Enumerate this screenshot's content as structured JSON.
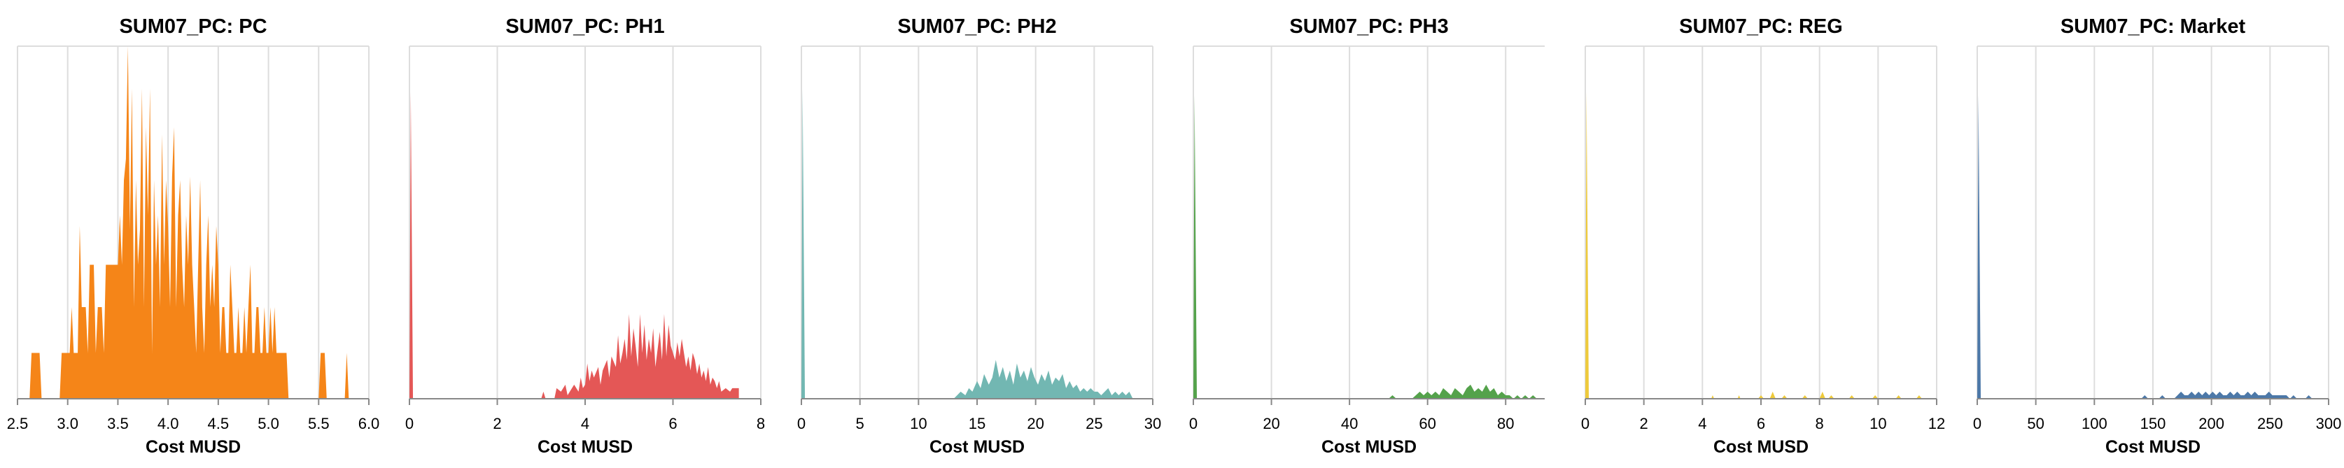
{
  "chart_data": [
    {
      "type": "area",
      "title": "SUM07_PC: PC",
      "xlabel": "Cost MUSD",
      "ylabel": "",
      "color": "#f58518",
      "xlim": [
        2.5,
        6.0
      ],
      "ylim": [
        0,
        1
      ],
      "xticks": [
        "2.5",
        "3.0",
        "3.5",
        "4.0",
        "4.5",
        "5.0",
        "5.5",
        "6.0"
      ],
      "grid": true,
      "x": [
        2.62,
        2.64,
        2.72,
        2.74,
        2.92,
        2.94,
        2.96,
        3.02,
        3.04,
        3.06,
        3.1,
        3.12,
        3.14,
        3.18,
        3.2,
        3.22,
        3.24,
        3.26,
        3.28,
        3.3,
        3.32,
        3.34,
        3.36,
        3.38,
        3.4,
        3.42,
        3.44,
        3.46,
        3.48,
        3.5,
        3.52,
        3.54,
        3.56,
        3.58,
        3.6,
        3.62,
        3.64,
        3.66,
        3.68,
        3.7,
        3.72,
        3.74,
        3.76,
        3.78,
        3.8,
        3.82,
        3.84,
        3.86,
        3.88,
        3.9,
        3.92,
        3.94,
        3.96,
        3.98,
        4.0,
        4.02,
        4.04,
        4.06,
        4.08,
        4.1,
        4.12,
        4.14,
        4.16,
        4.18,
        4.2,
        4.22,
        4.24,
        4.26,
        4.28,
        4.3,
        4.32,
        4.34,
        4.36,
        4.38,
        4.4,
        4.42,
        4.44,
        4.46,
        4.48,
        4.5,
        4.52,
        4.54,
        4.56,
        4.58,
        4.6,
        4.62,
        4.64,
        4.66,
        4.68,
        4.7,
        4.72,
        4.74,
        4.76,
        4.78,
        4.8,
        4.82,
        4.84,
        4.86,
        4.88,
        4.9,
        4.92,
        4.94,
        4.96,
        4.98,
        5.0,
        5.02,
        5.04,
        5.06,
        5.08,
        5.1,
        5.12,
        5.14,
        5.16,
        5.18,
        5.2,
        5.5,
        5.52,
        5.54,
        5.56,
        5.58,
        5.76,
        5.78,
        5.8
      ],
      "values": [
        0,
        0.13,
        0.13,
        0,
        0,
        0.13,
        0.13,
        0.13,
        0.26,
        0.13,
        0.13,
        0.49,
        0.26,
        0.26,
        0.13,
        0.38,
        0.38,
        0.38,
        0.13,
        0.26,
        0.26,
        0.26,
        0.13,
        0.38,
        0.38,
        0.38,
        0.38,
        0.38,
        0.38,
        0.38,
        0.52,
        0.38,
        0.62,
        0.68,
        1.0,
        0.48,
        0.88,
        0.26,
        0.62,
        0.38,
        0.48,
        0.88,
        0.26,
        0.77,
        0.52,
        0.88,
        0.13,
        0.62,
        0.38,
        0.52,
        0.26,
        0.75,
        0.38,
        0.62,
        0.49,
        0.26,
        0.63,
        0.77,
        0.26,
        0.52,
        0.62,
        0.38,
        0.26,
        0.52,
        0.38,
        0.63,
        0.38,
        0.26,
        0.13,
        0.38,
        0.62,
        0.26,
        0.13,
        0.38,
        0.52,
        0.26,
        0.38,
        0.26,
        0.49,
        0.38,
        0.13,
        0.26,
        0.26,
        0.13,
        0.13,
        0.38,
        0.26,
        0.13,
        0.13,
        0.26,
        0.13,
        0.13,
        0.26,
        0.13,
        0.26,
        0.38,
        0.13,
        0.13,
        0.26,
        0.26,
        0.13,
        0.13,
        0.26,
        0.13,
        0.13,
        0.26,
        0.13,
        0.26,
        0.13,
        0.13,
        0.13,
        0.13,
        0.13,
        0.13,
        0,
        0,
        0.13,
        0.13,
        0.13,
        0,
        0,
        0.13,
        0
      ]
    },
    {
      "type": "area",
      "title": "SUM07_PC: PH1",
      "xlabel": "Cost MUSD",
      "ylabel": "",
      "color": "#e45756",
      "xlim": [
        0,
        8
      ],
      "ylim": [
        0,
        1
      ],
      "xticks": [
        "0",
        "2",
        "4",
        "6",
        "8"
      ],
      "grid": true,
      "x": [
        0,
        0.03,
        0.08,
        3.0,
        3.05,
        3.1,
        3.3,
        3.35,
        3.45,
        3.55,
        3.6,
        3.7,
        3.75,
        3.85,
        3.9,
        3.95,
        4.0,
        4.05,
        4.1,
        4.15,
        4.2,
        4.3,
        4.35,
        4.4,
        4.5,
        4.55,
        4.6,
        4.7,
        4.75,
        4.8,
        4.85,
        4.9,
        4.95,
        5.0,
        5.05,
        5.1,
        5.15,
        5.2,
        5.25,
        5.3,
        5.35,
        5.4,
        5.45,
        5.5,
        5.55,
        5.6,
        5.65,
        5.7,
        5.75,
        5.8,
        5.85,
        5.9,
        5.95,
        6.0,
        6.05,
        6.1,
        6.15,
        6.2,
        6.25,
        6.3,
        6.35,
        6.4,
        6.45,
        6.5,
        6.55,
        6.6,
        6.65,
        6.7,
        6.75,
        6.8,
        6.85,
        6.9,
        6.95,
        7.0,
        7.05,
        7.1,
        7.2,
        7.3,
        7.35,
        7.5
      ],
      "values": [
        0,
        0.87,
        0,
        0,
        0.02,
        0,
        0,
        0.03,
        0.02,
        0.04,
        0.01,
        0.03,
        0.04,
        0.02,
        0.06,
        0.03,
        0.04,
        0.1,
        0.05,
        0.08,
        0.06,
        0.09,
        0.04,
        0.08,
        0.11,
        0.06,
        0.12,
        0.09,
        0.18,
        0.1,
        0.13,
        0.17,
        0.11,
        0.24,
        0.12,
        0.2,
        0.15,
        0.09,
        0.24,
        0.13,
        0.21,
        0.11,
        0.17,
        0.13,
        0.2,
        0.09,
        0.14,
        0.19,
        0.11,
        0.24,
        0.12,
        0.21,
        0.15,
        0.13,
        0.11,
        0.16,
        0.12,
        0.17,
        0.13,
        0.09,
        0.12,
        0.08,
        0.13,
        0.11,
        0.07,
        0.1,
        0.06,
        0.08,
        0.05,
        0.09,
        0.04,
        0.06,
        0.05,
        0.03,
        0.05,
        0.02,
        0.03,
        0.02,
        0.03,
        0.03
      ]
    },
    {
      "type": "area",
      "title": "SUM07_PC: PH2",
      "xlabel": "Cost MUSD",
      "ylabel": "",
      "color": "#72b7b2",
      "xlim": [
        0,
        30
      ],
      "ylim": [
        0,
        1
      ],
      "xticks": [
        "0",
        "5",
        "10",
        "15",
        "20",
        "25",
        "30"
      ],
      "grid": true,
      "x": [
        0,
        0.1,
        0.3,
        13.0,
        13.3,
        13.6,
        14.0,
        14.3,
        14.6,
        15.0,
        15.3,
        15.6,
        16.0,
        16.3,
        16.6,
        16.9,
        17.2,
        17.5,
        17.8,
        18.1,
        18.4,
        18.7,
        19.0,
        19.3,
        19.6,
        19.9,
        20.2,
        20.5,
        20.8,
        21.1,
        21.4,
        21.7,
        22.0,
        22.3,
        22.6,
        22.9,
        23.2,
        23.5,
        23.8,
        24.1,
        24.4,
        24.7,
        25.0,
        25.3,
        25.6,
        25.9,
        26.2,
        26.5,
        26.8,
        27.1,
        27.4,
        27.7,
        28.0,
        28.3
      ],
      "values": [
        0,
        0.88,
        0,
        0,
        0.01,
        0.02,
        0.01,
        0.03,
        0.02,
        0.05,
        0.03,
        0.07,
        0.04,
        0.06,
        0.11,
        0.06,
        0.09,
        0.05,
        0.08,
        0.04,
        0.1,
        0.06,
        0.08,
        0.05,
        0.09,
        0.06,
        0.04,
        0.07,
        0.05,
        0.08,
        0.04,
        0.06,
        0.05,
        0.07,
        0.03,
        0.05,
        0.03,
        0.04,
        0.02,
        0.03,
        0.02,
        0.03,
        0.02,
        0.02,
        0.01,
        0.02,
        0.03,
        0.01,
        0.02,
        0.01,
        0.02,
        0.01,
        0.02,
        0
      ]
    },
    {
      "type": "area",
      "title": "SUM07_PC: PH3",
      "xlabel": "Cost MUSD",
      "ylabel": "",
      "color": "#54a24b",
      "xlim": [
        0,
        90
      ],
      "ylim": [
        0,
        1
      ],
      "xticks": [
        "0",
        "20",
        "40",
        "60",
        "80"
      ],
      "grid": true,
      "x": [
        0,
        0.3,
        0.9,
        50,
        51,
        52,
        56,
        57,
        58,
        59,
        60,
        61,
        62,
        63,
        64,
        65,
        66,
        67,
        68,
        69,
        70,
        71,
        72,
        73,
        74,
        75,
        76,
        77,
        78,
        79,
        80,
        81,
        82,
        83,
        84,
        85,
        86,
        87,
        88
      ],
      "values": [
        0,
        0.86,
        0,
        0,
        0.01,
        0,
        0,
        0.01,
        0.02,
        0.01,
        0.02,
        0.01,
        0.02,
        0.01,
        0.03,
        0.02,
        0.01,
        0.03,
        0.02,
        0.01,
        0.03,
        0.04,
        0.02,
        0.03,
        0.02,
        0.04,
        0.02,
        0.03,
        0.01,
        0.02,
        0.01,
        0.01,
        0,
        0.01,
        0,
        0.01,
        0,
        0.01,
        0
      ]
    },
    {
      "type": "area",
      "title": "SUM07_PC: REG",
      "xlabel": "Cost MUSD",
      "ylabel": "",
      "color": "#eeca3b",
      "xlim": [
        0,
        12
      ],
      "ylim": [
        0,
        1
      ],
      "xticks": [
        "0",
        "2",
        "4",
        "6",
        "8",
        "10",
        "12"
      ],
      "grid": true,
      "x": [
        0,
        0.04,
        0.12,
        4.3,
        4.35,
        4.4,
        5.2,
        5.25,
        5.3,
        5.9,
        6.0,
        6.1,
        6.3,
        6.4,
        6.5,
        6.7,
        6.8,
        6.9,
        7.4,
        7.5,
        7.6,
        8.0,
        8.1,
        8.2,
        8.3,
        8.4,
        8.5,
        9.0,
        9.1,
        9.2,
        9.8,
        9.9,
        10.0,
        10.6,
        10.7,
        10.8,
        11.3,
        11.4,
        11.5
      ],
      "values": [
        0,
        0.87,
        0,
        0,
        0.01,
        0,
        0,
        0.01,
        0,
        0,
        0.01,
        0,
        0,
        0.02,
        0,
        0,
        0.01,
        0,
        0,
        0.01,
        0,
        0,
        0.02,
        0,
        0,
        0.01,
        0,
        0,
        0.01,
        0,
        0,
        0.01,
        0,
        0,
        0.01,
        0,
        0,
        0.01,
        0
      ]
    },
    {
      "type": "area",
      "title": "SUM07_PC: Market",
      "xlabel": "Cost MUSD",
      "ylabel": "",
      "color": "#4c78a8",
      "xlim": [
        0,
        300
      ],
      "ylim": [
        0,
        1
      ],
      "xticks": [
        "0",
        "50",
        "100",
        "150",
        "200",
        "250",
        "300"
      ],
      "grid": true,
      "x": [
        0,
        1,
        3,
        140,
        143,
        146,
        155,
        158,
        161,
        168,
        171,
        174,
        177,
        180,
        183,
        186,
        189,
        192,
        195,
        198,
        201,
        204,
        207,
        210,
        213,
        216,
        219,
        222,
        225,
        228,
        231,
        234,
        237,
        240,
        243,
        246,
        249,
        252,
        255,
        258,
        261,
        264,
        267,
        270,
        273,
        280,
        283,
        286
      ],
      "values": [
        0,
        0.86,
        0,
        0,
        0.01,
        0,
        0,
        0.01,
        0,
        0,
        0.01,
        0.02,
        0.01,
        0.01,
        0.02,
        0.01,
        0.02,
        0.01,
        0.02,
        0.01,
        0.02,
        0.01,
        0.02,
        0.01,
        0.01,
        0.02,
        0.01,
        0.02,
        0.01,
        0.01,
        0.02,
        0.01,
        0.02,
        0.01,
        0.01,
        0.01,
        0.02,
        0.01,
        0.01,
        0.01,
        0.01,
        0.01,
        0,
        0.01,
        0,
        0,
        0.01,
        0
      ]
    }
  ]
}
